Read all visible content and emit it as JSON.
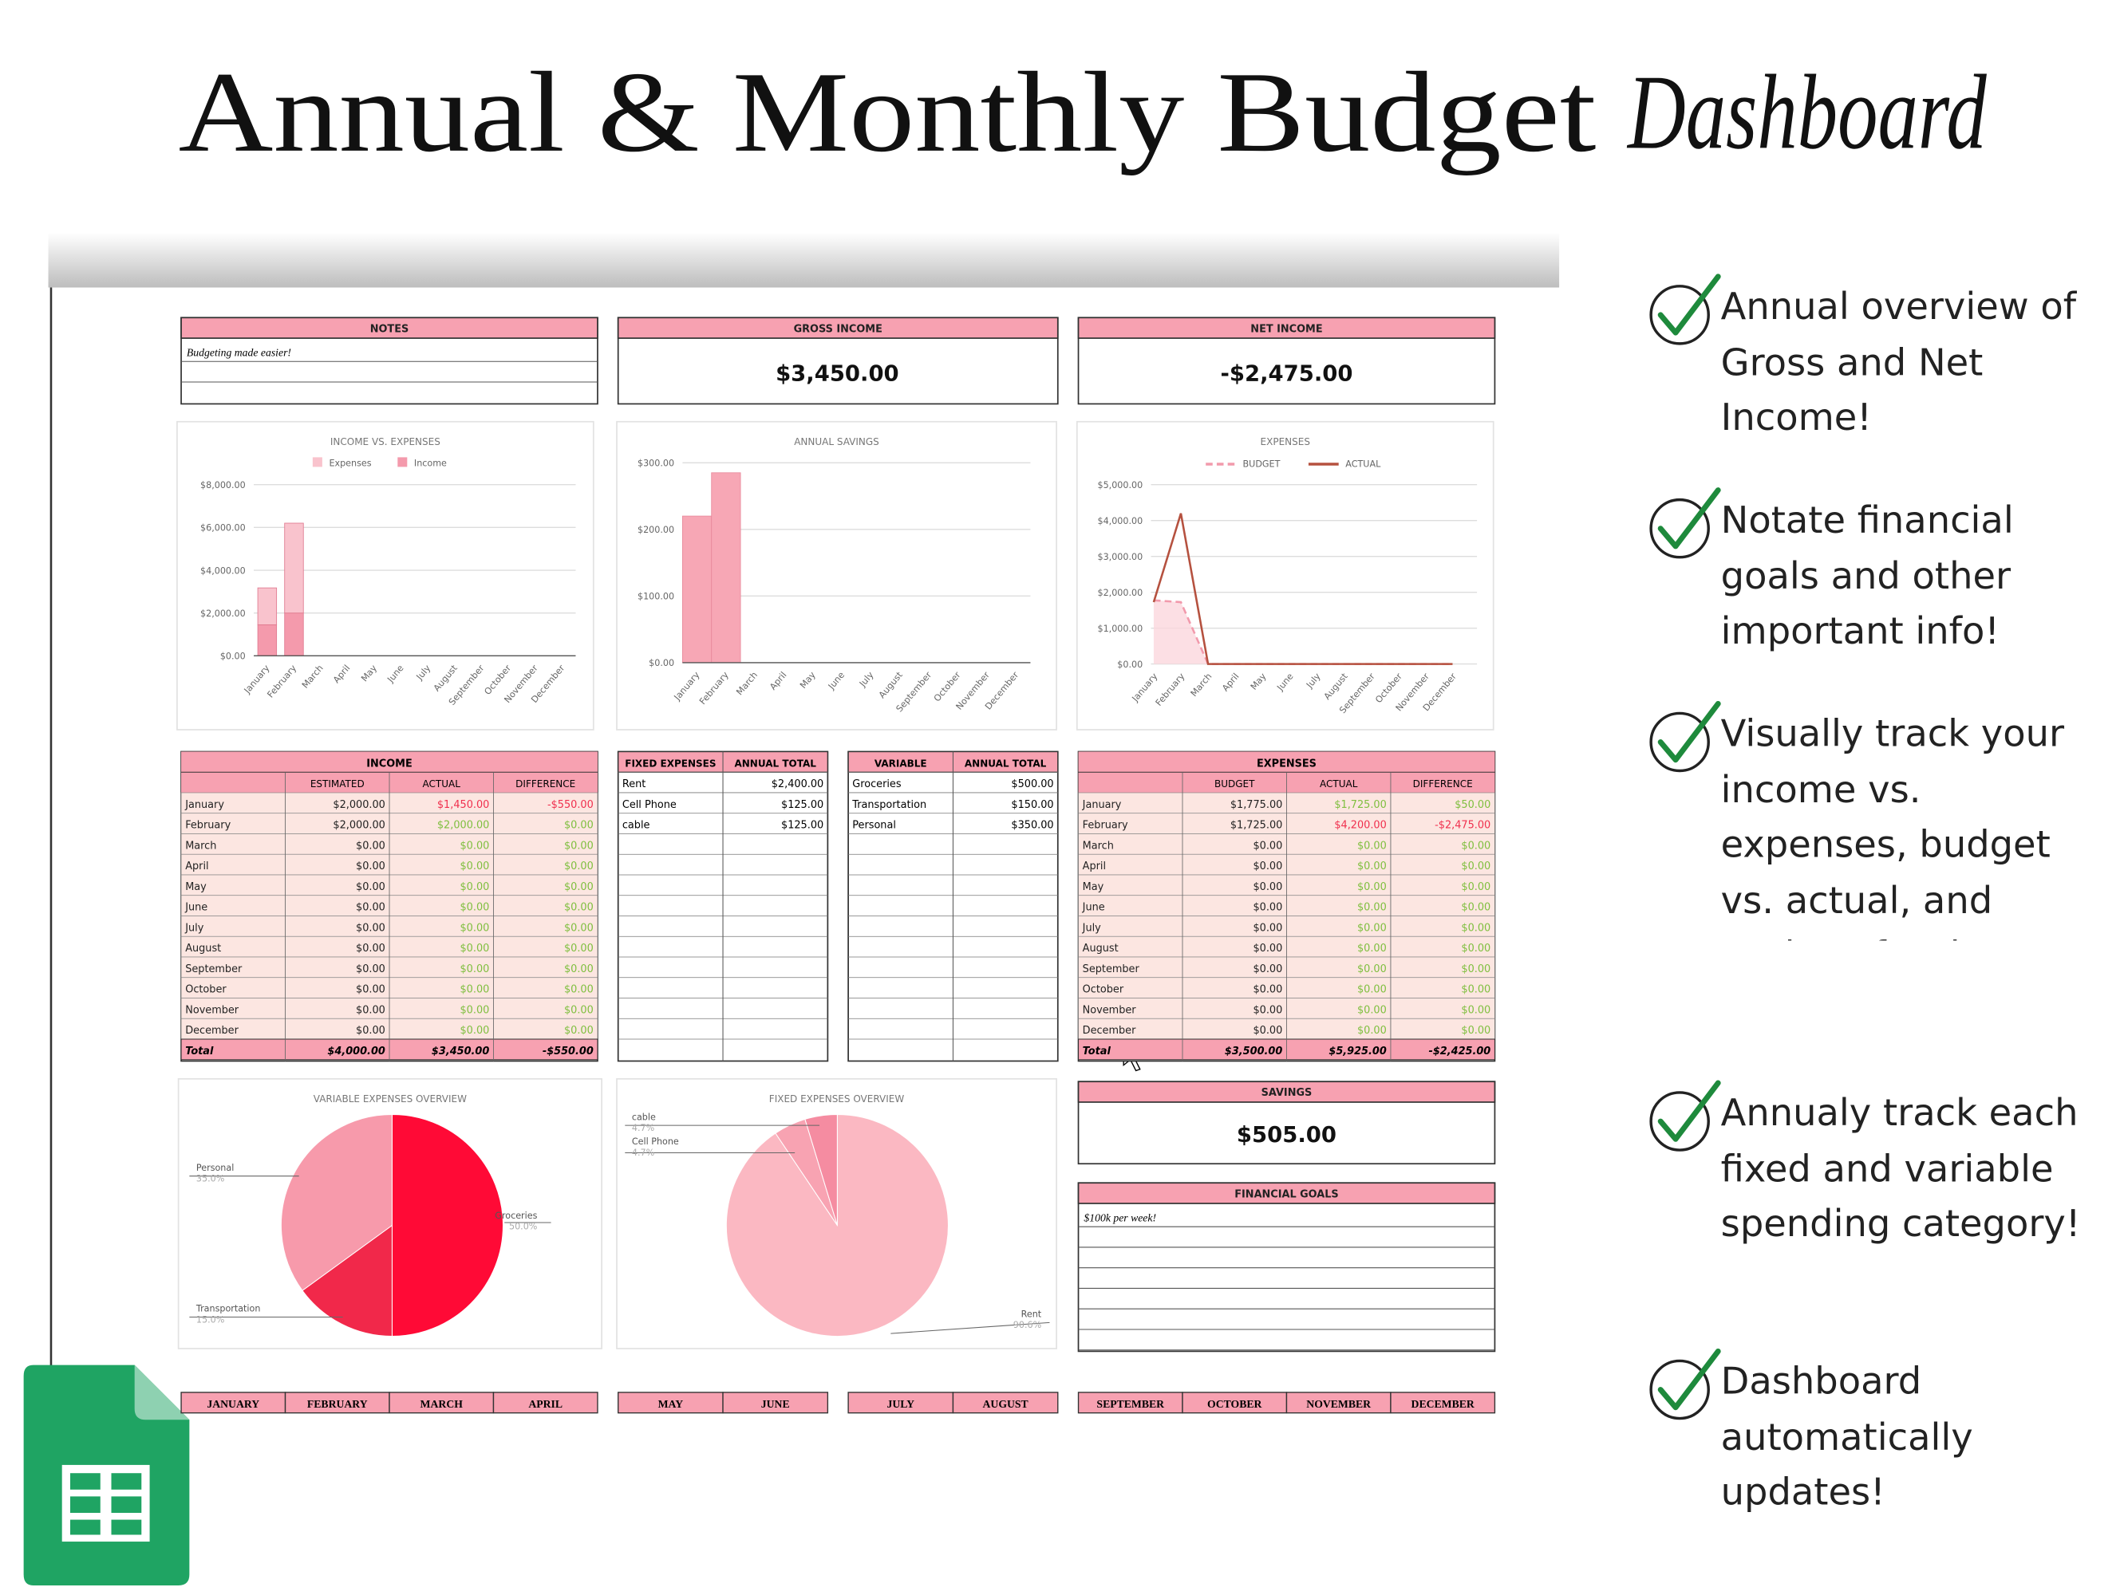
{
  "header": {
    "title": "Annual & Monthly Budget",
    "script": "Dashboard"
  },
  "features": [
    "Annual overview of Gross and Net Income!",
    "Notate financial goals and other important info!",
    "Visually track your income vs. expenses, budget vs. actual, and savings for the entire year!",
    "Annualy track each fixed and variable spending category!",
    "Dashboard automatically updates!"
  ],
  "notes": {
    "title": "NOTES",
    "text": "Budgeting made easier!"
  },
  "gross_income": {
    "title": "GROSS INCOME",
    "value": "$3,450.00"
  },
  "net_income": {
    "title": "NET INCOME",
    "value": "-$2,475.00"
  },
  "charts": [
    {
      "type": "bar",
      "stacked": true,
      "title": "INCOME VS. EXPENSES",
      "categories": [
        "January",
        "February",
        "March",
        "April",
        "May",
        "June",
        "July",
        "August",
        "September",
        "October",
        "November",
        "December"
      ],
      "series": [
        {
          "name": "Expenses",
          "color": "#f9c3cd",
          "values": [
            1725,
            4200,
            0,
            0,
            0,
            0,
            0,
            0,
            0,
            0,
            0,
            0
          ]
        },
        {
          "name": "Income",
          "color": "#f49aac",
          "values": [
            1450,
            2000,
            0,
            0,
            0,
            0,
            0,
            0,
            0,
            0,
            0,
            0
          ]
        }
      ],
      "ylim": [
        0,
        8000
      ],
      "yticks": [
        {
          "value": 0,
          "label": "$0.00"
        },
        {
          "value": 2000,
          "label": "$2,000.00"
        },
        {
          "value": 4000,
          "label": "$4,000.00"
        },
        {
          "value": 6000,
          "label": "$6,000.00"
        },
        {
          "value": 8000,
          "label": "$8,000.00"
        }
      ],
      "grid": true
    },
    {
      "type": "bar",
      "title": "ANNUAL SAVINGS",
      "categories": [
        "January",
        "February",
        "March",
        "April",
        "May",
        "June",
        "July",
        "August",
        "September",
        "October",
        "November",
        "December"
      ],
      "values": [
        220,
        285,
        0,
        0,
        0,
        0,
        0,
        0,
        0,
        0,
        0,
        0
      ],
      "color": "#f7a7b5",
      "ylim": [
        0,
        300
      ],
      "yticks": [
        {
          "value": 0,
          "label": "$0.00"
        },
        {
          "value": 100,
          "label": "$100.00"
        },
        {
          "value": 200,
          "label": "$200.00"
        },
        {
          "value": 300,
          "label": "$300.00"
        }
      ],
      "grid": true
    },
    {
      "type": "line",
      "title": "EXPENSES",
      "categories": [
        "January",
        "February",
        "March",
        "April",
        "May",
        "June",
        "July",
        "August",
        "September",
        "October",
        "November",
        "December"
      ],
      "series": [
        {
          "name": "BUDGET",
          "color": "#f29aac",
          "style": "dashed",
          "area": true,
          "values": [
            1775,
            1725,
            0,
            0,
            0,
            0,
            0,
            0,
            0,
            0,
            0,
            0
          ]
        },
        {
          "name": "ACTUAL",
          "color": "#b5513f",
          "values": [
            1725,
            4200,
            0,
            0,
            0,
            0,
            0,
            0,
            0,
            0,
            0,
            0
          ]
        }
      ],
      "ylim": [
        0,
        5000
      ],
      "yticks": [
        {
          "value": 0,
          "label": "$0.00"
        },
        {
          "value": 1000,
          "label": "$1,000.00"
        },
        {
          "value": 2000,
          "label": "$2,000.00"
        },
        {
          "value": 3000,
          "label": "$3,000.00"
        },
        {
          "value": 4000,
          "label": "$4,000.00"
        },
        {
          "value": 5000,
          "label": "$5,000.00"
        }
      ],
      "grid": true
    },
    {
      "type": "pie",
      "title": "VARIABLE EXPENSES OVERVIEW",
      "categories": [
        "Groceries",
        "Transportation",
        "Personal"
      ],
      "values": [
        50.0,
        15.0,
        35.0
      ],
      "value_labels": [
        "50.0%",
        "15.0%",
        "35.0%"
      ],
      "colors": [
        "#ff0a36",
        "#f1284a",
        "#f79aab"
      ]
    },
    {
      "type": "pie",
      "title": "FIXED EXPENSES OVERVIEW",
      "categories": [
        "Rent",
        "Cell Phone",
        "cable"
      ],
      "values": [
        90.6,
        4.7,
        4.7
      ],
      "value_labels": [
        "90.6%",
        "4.7%",
        "4.7%"
      ],
      "colors": [
        "#fbb8c2",
        "#f8a3b2",
        "#f58ca1"
      ]
    }
  ],
  "income": {
    "title": "INCOME",
    "columns": [
      "ESTIMATED",
      "ACTUAL",
      "DIFFERENCE"
    ],
    "rows": [
      [
        "January",
        "$2,000.00",
        "$1,450.00",
        "-$550.00"
      ],
      [
        "February",
        "$2,000.00",
        "$2,000.00",
        "$0.00"
      ],
      [
        "March",
        "$0.00",
        "$0.00",
        "$0.00"
      ],
      [
        "April",
        "$0.00",
        "$0.00",
        "$0.00"
      ],
      [
        "May",
        "$0.00",
        "$0.00",
        "$0.00"
      ],
      [
        "June",
        "$0.00",
        "$0.00",
        "$0.00"
      ],
      [
        "July",
        "$0.00",
        "$0.00",
        "$0.00"
      ],
      [
        "August",
        "$0.00",
        "$0.00",
        "$0.00"
      ],
      [
        "September",
        "$0.00",
        "$0.00",
        "$0.00"
      ],
      [
        "October",
        "$0.00",
        "$0.00",
        "$0.00"
      ],
      [
        "November",
        "$0.00",
        "$0.00",
        "$0.00"
      ],
      [
        "December",
        "$0.00",
        "$0.00",
        "$0.00"
      ]
    ],
    "total": [
      "Total",
      "$4,000.00",
      "$3,450.00",
      "-$550.00"
    ]
  },
  "fixed_expenses": {
    "columns": [
      "FIXED EXPENSES",
      "ANNUAL TOTAL"
    ],
    "rows": [
      [
        "Rent",
        "$2,400.00"
      ],
      [
        "Cell Phone",
        "$125.00"
      ],
      [
        "cable",
        "$125.00"
      ]
    ]
  },
  "variable_expenses": {
    "columns": [
      "VARIABLE",
      "ANNUAL TOTAL"
    ],
    "rows": [
      [
        "Groceries",
        "$500.00"
      ],
      [
        "Transportation",
        "$150.00"
      ],
      [
        "Personal",
        "$350.00"
      ]
    ]
  },
  "expenses": {
    "title": "EXPENSES",
    "columns": [
      "BUDGET",
      "ACTUAL",
      "DIFFERENCE"
    ],
    "rows": [
      [
        "January",
        "$1,775.00",
        "$1,725.00",
        "$50.00"
      ],
      [
        "February",
        "$1,725.00",
        "$4,200.00",
        "-$2,475.00"
      ],
      [
        "March",
        "$0.00",
        "$0.00",
        "$0.00"
      ],
      [
        "April",
        "$0.00",
        "$0.00",
        "$0.00"
      ],
      [
        "May",
        "$0.00",
        "$0.00",
        "$0.00"
      ],
      [
        "June",
        "$0.00",
        "$0.00",
        "$0.00"
      ],
      [
        "July",
        "$0.00",
        "$0.00",
        "$0.00"
      ],
      [
        "August",
        "$0.00",
        "$0.00",
        "$0.00"
      ],
      [
        "September",
        "$0.00",
        "$0.00",
        "$0.00"
      ],
      [
        "October",
        "$0.00",
        "$0.00",
        "$0.00"
      ],
      [
        "November",
        "$0.00",
        "$0.00",
        "$0.00"
      ],
      [
        "December",
        "$0.00",
        "$0.00",
        "$0.00"
      ]
    ],
    "total": [
      "Total",
      "$3,500.00",
      "$5,925.00",
      "-$2,425.00"
    ]
  },
  "savings": {
    "title": "SAVINGS",
    "value": "$505.00"
  },
  "financial_goals": {
    "title": "FINANCIAL GOALS",
    "text": "$100k per week!"
  },
  "month_tabs": [
    "JANUARY",
    "FEBRUARY",
    "MARCH",
    "APRIL",
    "MAY",
    "JUNE",
    "JULY",
    "AUGUST",
    "SEPTEMBER",
    "OCTOBER",
    "NOVEMBER",
    "DECEMBER"
  ]
}
